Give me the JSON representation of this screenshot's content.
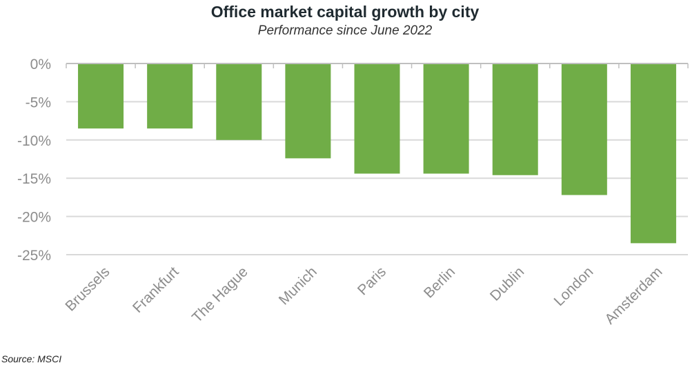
{
  "chart_data": {
    "type": "bar",
    "title": "Office market capital growth by city",
    "subtitle": "Performance since June 2022",
    "categories": [
      "Brussels",
      "Frankfurt",
      "The Hague",
      "Munich",
      "Paris",
      "Berlin",
      "Dublin",
      "London",
      "Amsterdam"
    ],
    "values": [
      -8.5,
      -8.5,
      -10.0,
      -12.4,
      -14.4,
      -14.4,
      -14.6,
      -17.2,
      -23.5
    ],
    "ylim": [
      -25,
      0
    ],
    "yticks": [
      0,
      -5,
      -10,
      -15,
      -20,
      -25
    ],
    "ytick_labels": [
      "0%",
      "-5%",
      "-10%",
      "-15%",
      "-20%",
      "-25%"
    ],
    "xlabel": "",
    "ylabel": "",
    "grid": true,
    "bar_color": "#70ad47",
    "source": "Source: MSCI"
  }
}
